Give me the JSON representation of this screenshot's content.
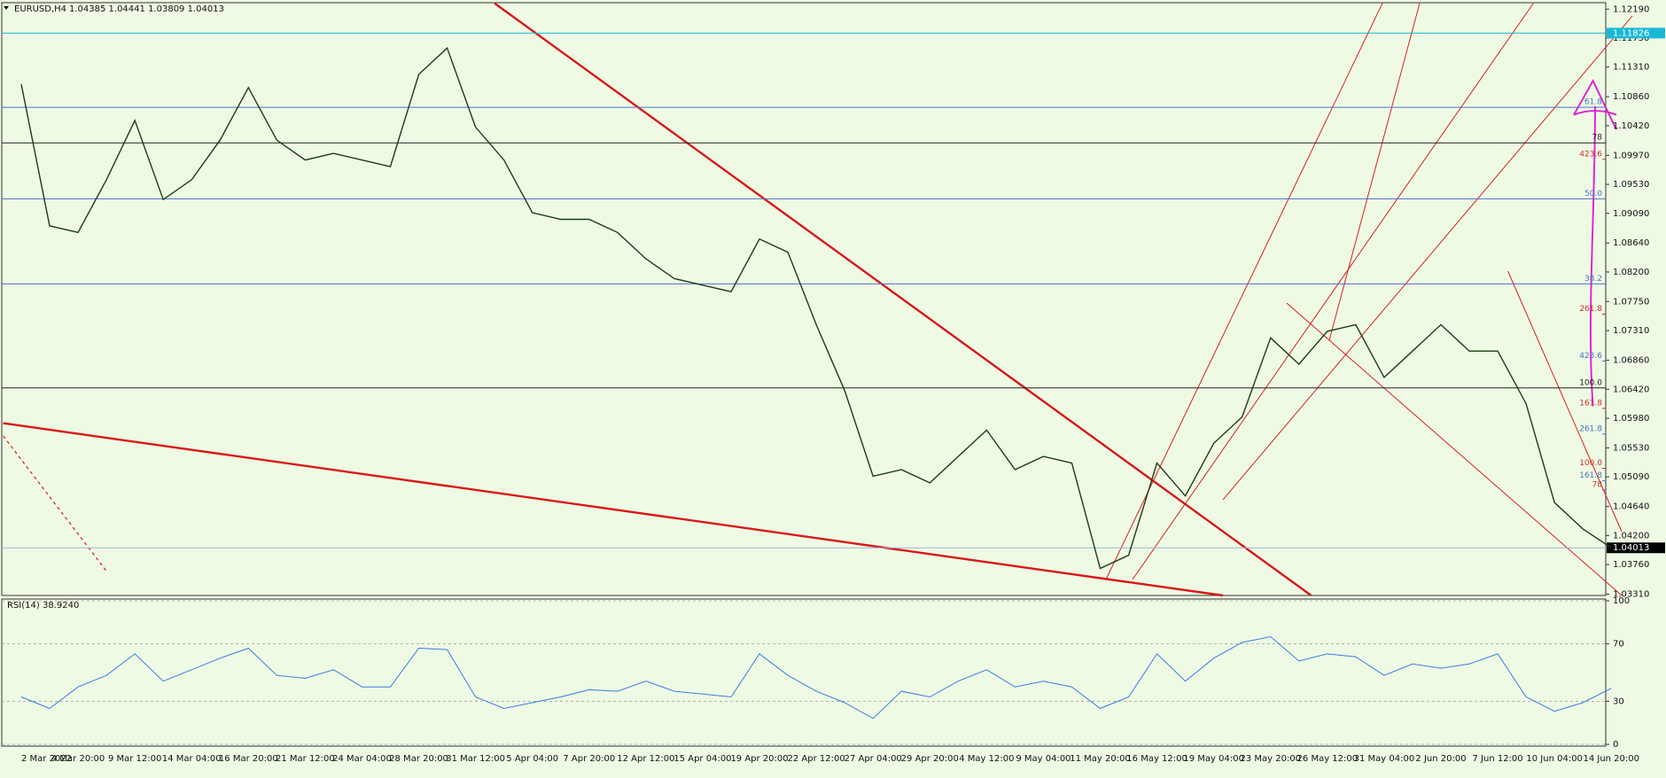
{
  "chart_data": [
    {
      "type": "line",
      "title": "EURUSD,H4",
      "subtitle": "1.04385 1.04441 1.03809 1.04013",
      "categories": [
        "2 Mar 2022",
        null,
        "4 Mar 20:00",
        null,
        "9 Mar 12:00",
        null,
        "14 Mar 04:00",
        null,
        "16 Mar 20:00",
        null,
        "21 Mar 12:00",
        null,
        "24 Mar 04:00",
        null,
        "28 Mar 20:00",
        null,
        "31 Mar 12:00",
        null,
        "5 Apr 04:00",
        null,
        "7 Apr 20:00",
        null,
        "12 Apr 12:00",
        null,
        "15 Apr 04:00",
        null,
        "19 Apr 20:00",
        null,
        "22 Apr 12:00",
        null,
        "27 Apr 04:00",
        null,
        "29 Apr 20:00",
        null,
        "4 May 12:00",
        null,
        "9 May 04:00",
        null,
        "11 May 20:00",
        null,
        "16 May 12:00",
        null,
        "19 May 04:00",
        null,
        "23 May 20:00",
        null,
        "26 May 12:00",
        null,
        "31 May 04:00",
        null,
        "2 Jun 20:00",
        null,
        "7 Jun 12:00",
        null,
        "10 Jun 04:00",
        null,
        "14 Jun 20:00"
      ],
      "values": [
        1.1105,
        1.089,
        1.088,
        1.096,
        1.105,
        1.093,
        1.096,
        1.102,
        1.11,
        1.102,
        1.099,
        1.1,
        1.099,
        1.098,
        1.112,
        1.116,
        1.104,
        1.099,
        1.091,
        1.09,
        1.09,
        1.088,
        1.084,
        1.081,
        1.08,
        1.079,
        1.087,
        1.085,
        1.074,
        1.064,
        1.051,
        1.052,
        1.05,
        1.054,
        1.058,
        1.052,
        1.054,
        1.053,
        1.037,
        1.039,
        1.053,
        1.048,
        1.056,
        1.06,
        1.072,
        1.068,
        1.073,
        1.074,
        1.066,
        1.07,
        1.074,
        1.07,
        1.07,
        1.062,
        1.047,
        1.043,
        1.04013
      ],
      "color": "#1a3d12",
      "ylim": [
        1.0329,
        1.1228
      ],
      "yticks": [
        {
          "value": 1.1219,
          "label": "1.12190"
        },
        {
          "value": 1.1175,
          "label": "1.11750"
        },
        {
          "value": 1.1131,
          "label": "1.11310"
        },
        {
          "value": 1.1086,
          "label": "1.10860"
        },
        {
          "value": 1.1042,
          "label": "1.10420"
        },
        {
          "value": 1.0997,
          "label": "1.09970"
        },
        {
          "value": 1.0953,
          "label": "1.09530"
        },
        {
          "value": 1.0909,
          "label": "1.09090"
        },
        {
          "value": 1.0864,
          "label": "1.08640"
        },
        {
          "value": 1.082,
          "label": "1.08200"
        },
        {
          "value": 1.0775,
          "label": "1.07750"
        },
        {
          "value": 1.0731,
          "label": "1.07310"
        },
        {
          "value": 1.0686,
          "label": "1.06860"
        },
        {
          "value": 1.0642,
          "label": "1.06420"
        },
        {
          "value": 1.0598,
          "label": "1.05980"
        },
        {
          "value": 1.0553,
          "label": "1.05530"
        },
        {
          "value": 1.0509,
          "label": "1.05090"
        },
        {
          "value": 1.0464,
          "label": "1.04640"
        },
        {
          "value": 1.042,
          "label": "1.04200"
        },
        {
          "value": 1.0376,
          "label": "1.03760"
        },
        {
          "value": 1.0331,
          "label": "1.03310"
        }
      ],
      "last_price": 1.04013,
      "levels": [
        {
          "value": 1.11826,
          "label": "1.11826",
          "color": "#19b8d8",
          "line": true
        },
        {
          "value": 1.107,
          "label": "61.8",
          "color": "#4a72c8",
          "line": true
        },
        {
          "value": 1.1016,
          "label": "78",
          "color": "#222222",
          "line": true
        },
        {
          "value": 1.0991,
          "label": "423.6",
          "color": "#d03030",
          "line": false
        },
        {
          "value": 1.0931,
          "label": "50.0",
          "color": "#4a72c8",
          "line": true
        },
        {
          "value": 1.0802,
          "label": "38.2",
          "color": "#4a72c8",
          "line": true
        },
        {
          "value": 1.0756,
          "label": "261.8",
          "color": "#d03030",
          "line": false
        },
        {
          "value": 1.0685,
          "label": "423.6",
          "color": "#4a72c8",
          "line": false
        },
        {
          "value": 1.0644,
          "label": "100.0",
          "color": "#222222",
          "line": true
        },
        {
          "value": 1.0613,
          "label": "161.8",
          "color": "#d03030",
          "line": false
        },
        {
          "value": 1.0574,
          "label": "261.8",
          "color": "#4a72c8",
          "line": false
        },
        {
          "value": 1.0522,
          "label": "100.0",
          "color": "#d03030",
          "line": false
        },
        {
          "value": 1.0503,
          "label": "161.8",
          "color": "#4a72c8",
          "line": false
        },
        {
          "value": 1.0489,
          "label": "78",
          "color": "#d03030",
          "line": false
        }
      ]
    },
    {
      "type": "line",
      "title": "RSI(14) 38.9240",
      "values": [
        33,
        25,
        40,
        48,
        63,
        44,
        52,
        60,
        67,
        48,
        46,
        52,
        40,
        40,
        67,
        66,
        33,
        25,
        29,
        33,
        38,
        37,
        44,
        37,
        35,
        33,
        63,
        48,
        37,
        29,
        18,
        37,
        33,
        44,
        52,
        40,
        44,
        40,
        25,
        33,
        63,
        44,
        60,
        71,
        75,
        58,
        63,
        61,
        48,
        56,
        53,
        56,
        63,
        33,
        23,
        29,
        39
      ],
      "color": "#3a7be0",
      "ylim": [
        0,
        100
      ],
      "yticks": [
        0,
        30,
        70,
        100
      ],
      "grid": true
    }
  ]
}
